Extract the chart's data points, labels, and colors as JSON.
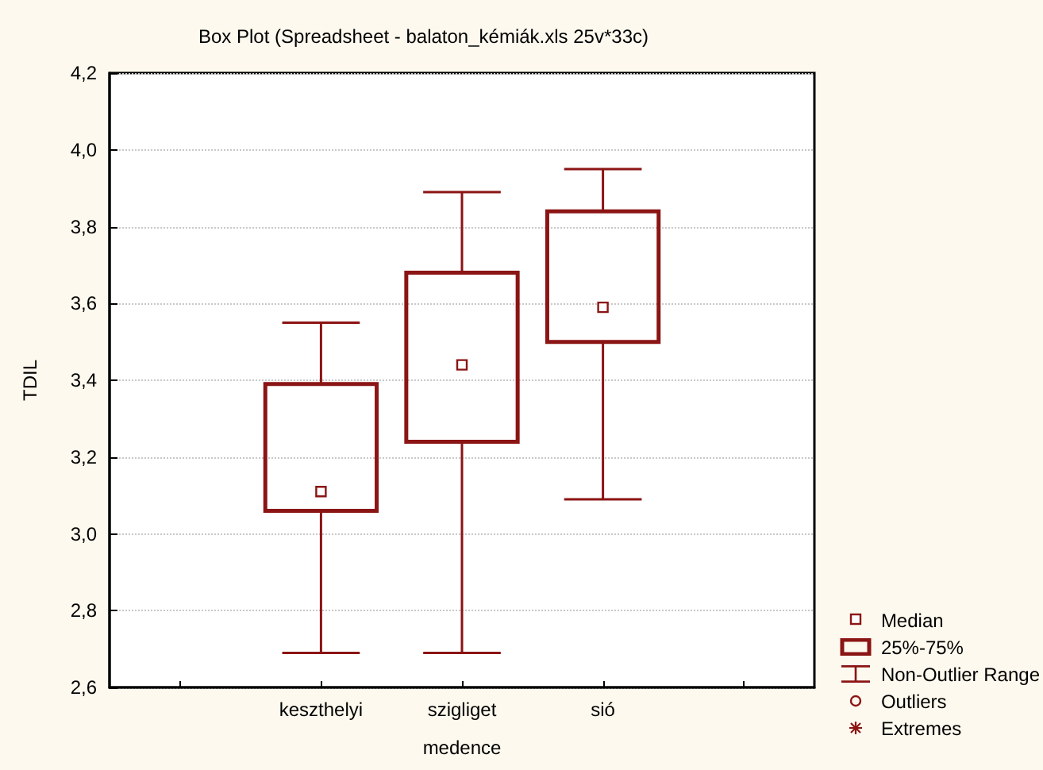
{
  "chart_data": {
    "type": "box",
    "title": "Box Plot (Spreadsheet - balaton_kémiák.xls 25v*33c)",
    "xlabel": "medence",
    "ylabel": "TDIL",
    "categories": [
      null,
      "keszthelyi",
      "szigliget",
      "sió",
      null
    ],
    "series": [
      {
        "color": "#8b1414",
        "boxes": [
          null,
          {
            "low": 2.69,
            "q1": 3.06,
            "median": 3.11,
            "q3": 3.39,
            "high": 3.55
          },
          {
            "low": 2.69,
            "q1": 3.24,
            "median": 3.44,
            "q3": 3.68,
            "high": 3.89
          },
          {
            "low": 3.09,
            "q1": 3.5,
            "median": 3.59,
            "q3": 3.84,
            "high": 3.95
          },
          null
        ]
      }
    ],
    "annotations": [
      "Median",
      "25%-75%",
      "Non-Outlier Range",
      "Outliers",
      "Extremes"
    ],
    "ylim": [
      2.6,
      4.2
    ],
    "yticks": [
      {
        "value": 2.6,
        "label": "2,6"
      },
      {
        "value": 2.8,
        "label": "2,8"
      },
      {
        "value": 3.0,
        "label": "3,0"
      },
      {
        "value": 3.2,
        "label": "3,2"
      },
      {
        "value": 3.4,
        "label": "3,4"
      },
      {
        "value": 3.6,
        "label": "3,6"
      },
      {
        "value": 3.8,
        "label": "3,8"
      },
      {
        "value": 4.0,
        "label": "4,0"
      },
      {
        "value": 4.2,
        "label": "4,2"
      }
    ],
    "grid": "y"
  }
}
